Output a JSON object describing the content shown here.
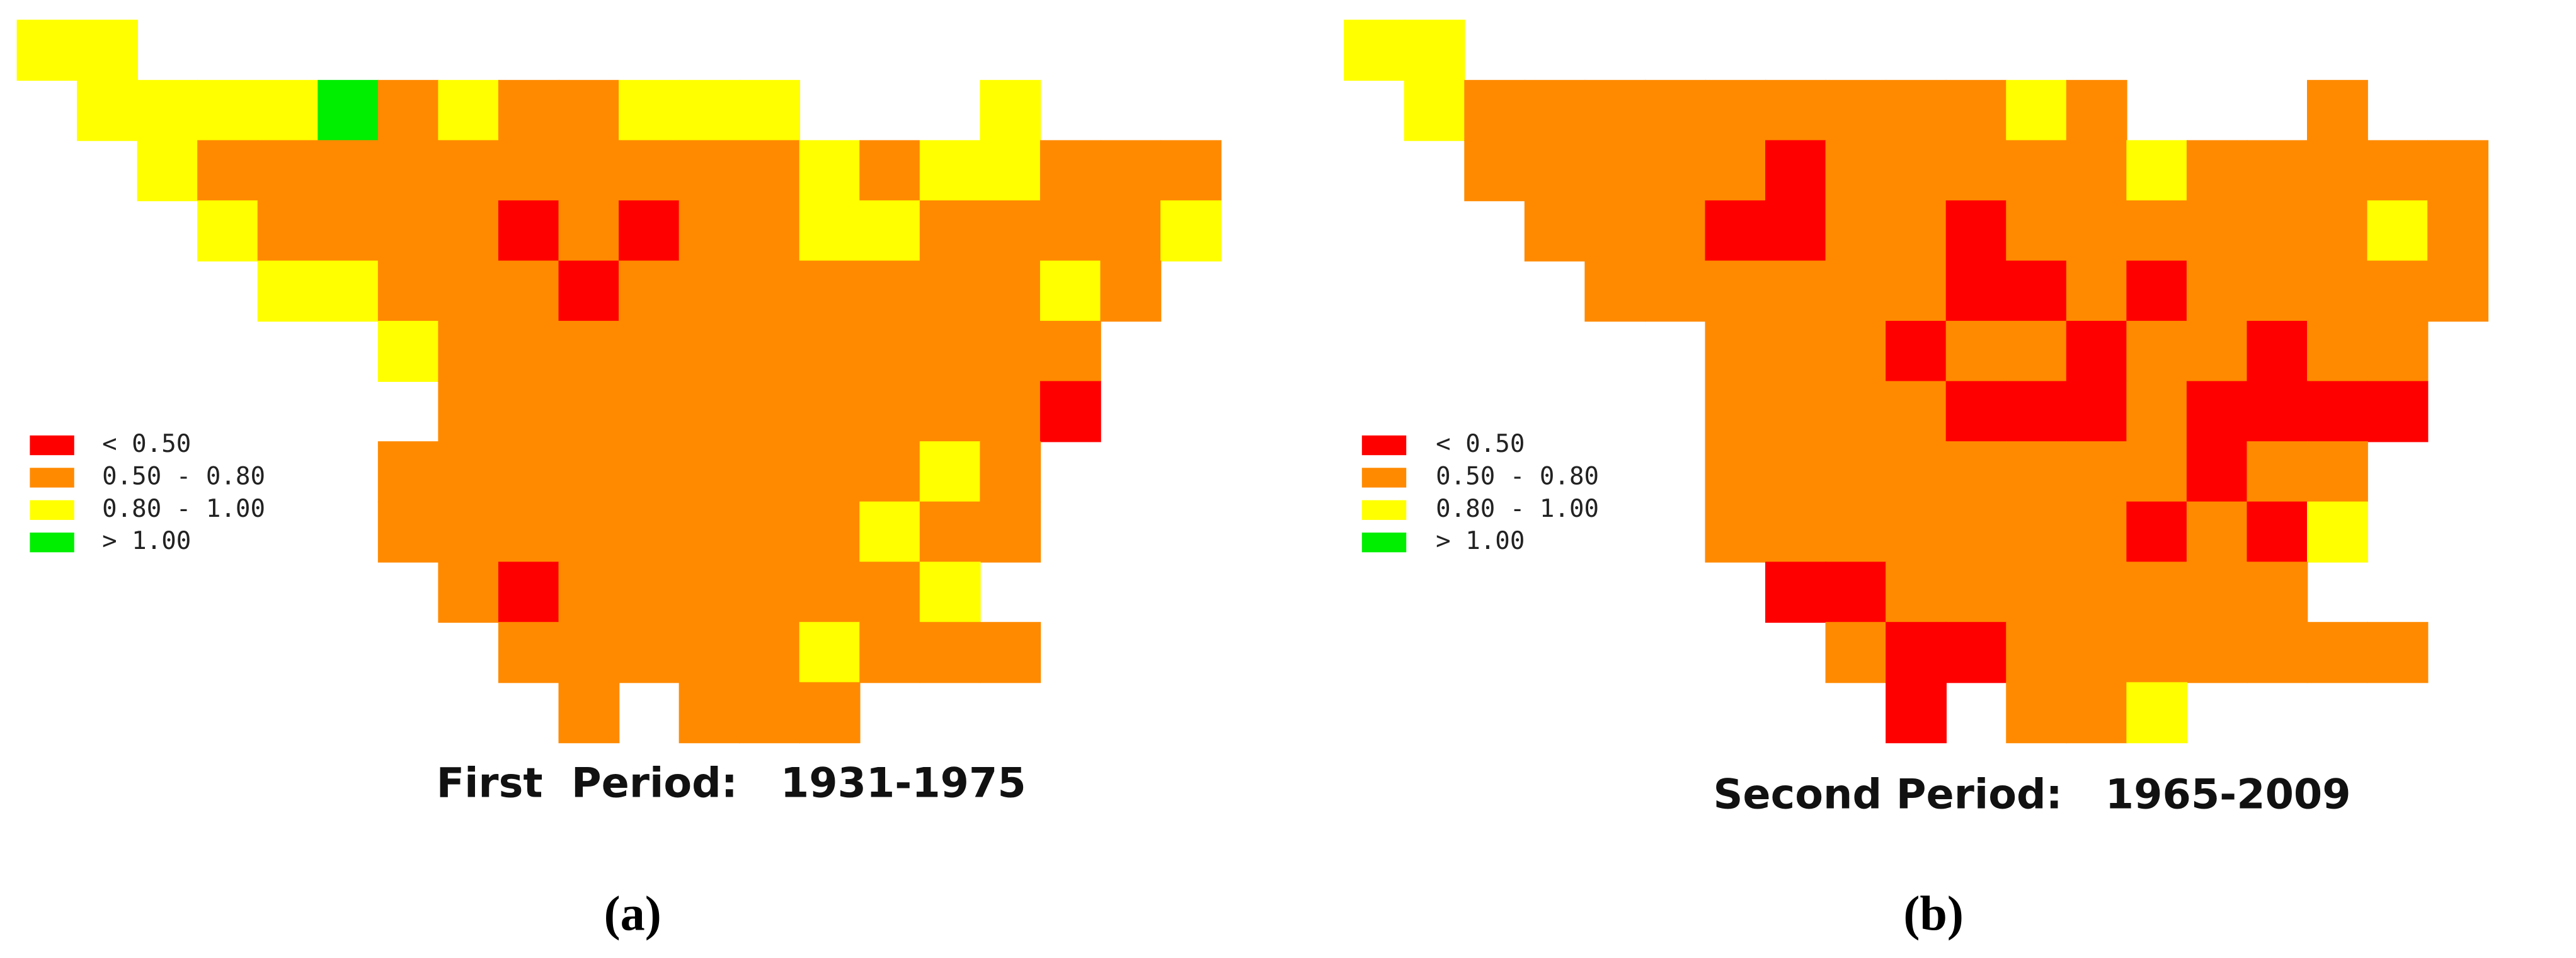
{
  "legend": [
    {
      "label": "< 0.50",
      "color": "#ff0000"
    },
    {
      "label": "0.50 - 0.80",
      "color": "#ff8a00"
    },
    {
      "label": "0.80 - 1.00",
      "color": "#ffff00"
    },
    {
      "label": "> 1.00",
      "color": "#00ee00"
    }
  ],
  "panels": [
    {
      "title": "First  Period:   1931-1975",
      "caption": "(a)",
      "grid": [
        [
          2,
          2,
          null,
          null,
          null,
          null,
          null,
          null,
          null,
          null,
          null,
          null,
          null,
          null,
          null,
          null,
          null,
          null,
          null,
          null
        ],
        [
          null,
          2,
          2,
          2,
          2,
          3,
          1,
          2,
          1,
          1,
          2,
          2,
          2,
          null,
          null,
          null,
          2,
          null,
          null,
          null
        ],
        [
          null,
          null,
          2,
          1,
          1,
          1,
          1,
          1,
          1,
          1,
          1,
          1,
          1,
          2,
          1,
          2,
          2,
          1,
          1,
          1
        ],
        [
          null,
          null,
          null,
          2,
          1,
          1,
          1,
          1,
          0,
          1,
          0,
          1,
          1,
          2,
          2,
          1,
          1,
          1,
          1,
          2
        ],
        [
          null,
          null,
          null,
          null,
          2,
          2,
          1,
          1,
          1,
          0,
          1,
          1,
          1,
          1,
          1,
          1,
          1,
          2,
          1,
          null
        ],
        [
          null,
          null,
          null,
          null,
          null,
          null,
          2,
          1,
          1,
          1,
          1,
          1,
          1,
          1,
          1,
          1,
          1,
          1,
          null,
          null
        ],
        [
          null,
          null,
          null,
          null,
          null,
          null,
          null,
          1,
          1,
          1,
          1,
          1,
          1,
          1,
          1,
          1,
          1,
          0,
          null,
          null
        ],
        [
          null,
          null,
          null,
          null,
          null,
          null,
          1,
          1,
          1,
          1,
          1,
          1,
          1,
          1,
          1,
          2,
          1,
          null,
          null,
          null
        ],
        [
          null,
          null,
          null,
          null,
          null,
          null,
          1,
          1,
          1,
          1,
          1,
          1,
          1,
          1,
          2,
          1,
          1,
          null,
          null,
          null
        ],
        [
          null,
          null,
          null,
          null,
          null,
          null,
          null,
          1,
          0,
          1,
          1,
          1,
          1,
          1,
          1,
          2,
          null,
          null,
          null,
          null
        ],
        [
          null,
          null,
          null,
          null,
          null,
          null,
          null,
          null,
          1,
          1,
          1,
          1,
          1,
          2,
          1,
          1,
          1,
          null,
          null,
          null
        ],
        [
          null,
          null,
          null,
          null,
          null,
          null,
          null,
          null,
          null,
          1,
          null,
          1,
          1,
          1,
          null,
          null,
          null,
          null,
          null,
          null
        ]
      ]
    },
    {
      "title": "Second Period:   1965-2009",
      "caption": "(b)",
      "grid": [
        [
          2,
          2,
          null,
          null,
          null,
          null,
          null,
          null,
          null,
          null,
          null,
          null,
          null,
          null,
          null,
          null,
          null,
          null,
          null
        ],
        [
          null,
          2,
          1,
          1,
          1,
          1,
          1,
          1,
          1,
          1,
          1,
          2,
          1,
          null,
          null,
          null,
          1,
          null,
          null
        ],
        [
          null,
          null,
          1,
          1,
          1,
          1,
          1,
          0,
          1,
          1,
          1,
          1,
          1,
          2,
          1,
          1,
          1,
          1,
          1
        ],
        [
          null,
          null,
          null,
          1,
          1,
          1,
          0,
          0,
          1,
          1,
          0,
          1,
          1,
          1,
          1,
          1,
          1,
          2,
          1
        ],
        [
          null,
          null,
          null,
          null,
          1,
          1,
          1,
          1,
          1,
          1,
          0,
          0,
          1,
          0,
          1,
          1,
          1,
          1,
          1
        ],
        [
          null,
          null,
          null,
          null,
          null,
          null,
          1,
          1,
          1,
          0,
          1,
          1,
          0,
          1,
          1,
          0,
          1,
          1,
          null
        ],
        [
          null,
          null,
          null,
          null,
          null,
          null,
          1,
          1,
          1,
          1,
          0,
          0,
          0,
          1,
          0,
          0,
          0,
          0,
          null
        ],
        [
          null,
          null,
          null,
          null,
          null,
          null,
          1,
          1,
          1,
          1,
          1,
          1,
          1,
          1,
          0,
          1,
          1,
          null,
          null
        ],
        [
          null,
          null,
          null,
          null,
          null,
          null,
          1,
          1,
          1,
          1,
          1,
          1,
          1,
          0,
          1,
          0,
          2,
          null,
          null
        ],
        [
          null,
          null,
          null,
          null,
          null,
          null,
          null,
          0,
          0,
          1,
          1,
          1,
          1,
          1,
          1,
          1,
          null,
          null,
          null
        ],
        [
          null,
          null,
          null,
          null,
          null,
          null,
          null,
          null,
          1,
          0,
          0,
          1,
          1,
          1,
          1,
          1,
          1,
          1,
          null
        ],
        [
          null,
          null,
          null,
          null,
          null,
          null,
          null,
          null,
          null,
          0,
          null,
          1,
          1,
          2,
          null,
          null,
          null,
          null,
          null
        ]
      ]
    }
  ]
}
